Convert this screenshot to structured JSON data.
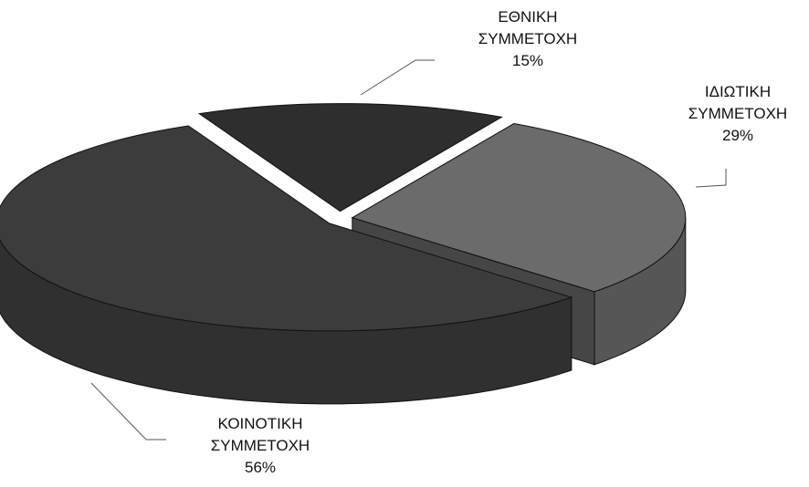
{
  "chart_data": {
    "type": "pie3d",
    "categories": [
      "ΕΘΝΙΚΗ ΣΥΜΜΕΤΟΧΗ",
      "ΙΔΙΩΤΙΚΗ ΣΥΜΜΕΤΟΧΗ",
      "ΚΟΙΝΟΤΙΚΗ ΣΥΜΜΕΤΟΧΗ"
    ],
    "values": [
      15,
      29,
      56
    ],
    "value_labels": [
      "15%",
      "29%",
      "56%"
    ],
    "colors": [
      "#2e2e2e",
      "#6b6b6b",
      "#3c3c3c"
    ]
  }
}
